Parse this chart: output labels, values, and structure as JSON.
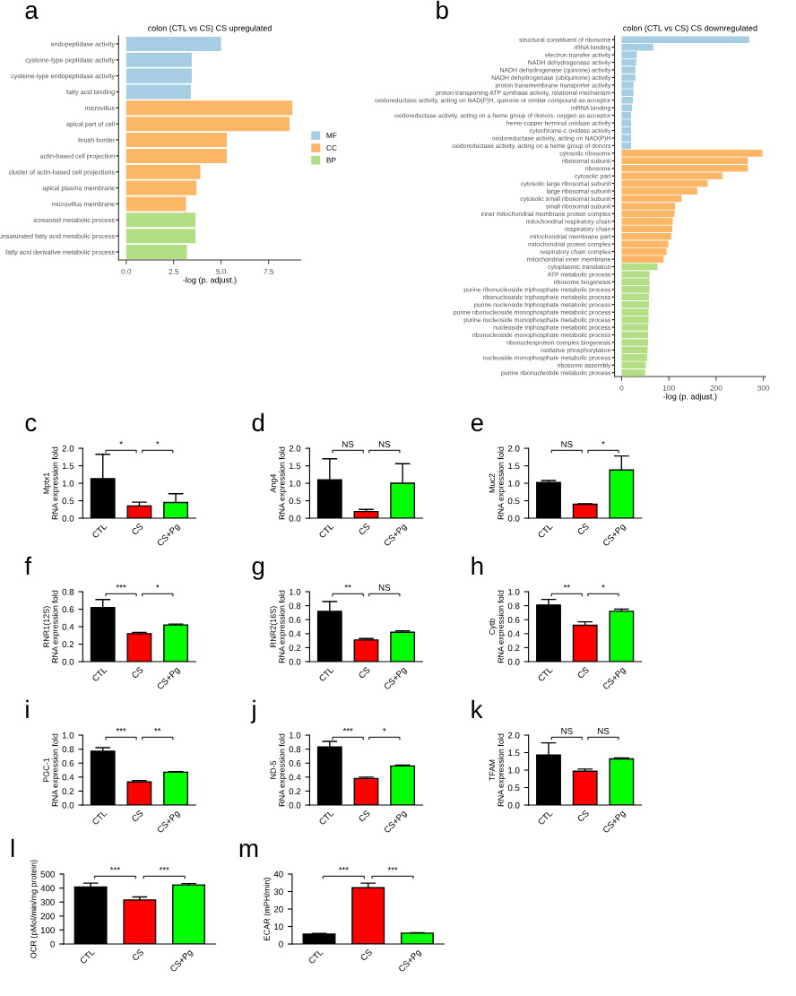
{
  "chart_data": [
    {
      "type": "bar",
      "orientation": "horizontal",
      "stacked": true,
      "title": "colon (CTL vs CS) CS upregulated",
      "xlabel": "-log (p. adjust.)",
      "annotations": [
        "a"
      ],
      "legend": "right",
      "categories": [
        "endopeptidase activity",
        "cysteine-type peptidase activity",
        "cysteine-type endopeptidase activity",
        "fatty acid binding",
        "microvillus",
        "apical part of cell",
        "brush border",
        "actin-based cell projection",
        "cluster of actin-based cell projections",
        "apical plasma membrane",
        "microvillus membrane",
        "icosanoid metabolic process",
        "unsaturated fatty acid metabolic process",
        "fatty acid derivative metabolic process"
      ],
      "series": [
        {
          "name": "MF",
          "color": "#a6cde2",
          "values": [
            5.0,
            3.45,
            3.45,
            3.4,
            null,
            null,
            null,
            null,
            null,
            null,
            null,
            null,
            null,
            null
          ]
        },
        {
          "name": "CC",
          "color": "#fbb666",
          "values": [
            null,
            null,
            null,
            null,
            8.75,
            8.6,
            5.3,
            5.3,
            3.9,
            3.7,
            3.15,
            null,
            null,
            null
          ]
        },
        {
          "name": "BP",
          "color": "#b3de85",
          "values": [
            null,
            null,
            null,
            null,
            null,
            null,
            null,
            null,
            null,
            null,
            null,
            3.65,
            3.65,
            3.2
          ]
        }
      ],
      "xlim": [
        -0.4,
        9.2
      ],
      "xticks": [
        {
          "value": 0,
          "label": "0.0"
        },
        {
          "value": 2.5,
          "label": "2.5"
        },
        {
          "value": 5,
          "label": "5.0"
        },
        {
          "value": 7.5,
          "label": "7.5"
        }
      ]
    },
    {
      "type": "bar",
      "orientation": "horizontal",
      "stacked": true,
      "title": "colon (CTL vs CS) CS downregulated",
      "xlabel": "-log (p. adjust.)",
      "annotations": [
        "b"
      ],
      "categories": [
        "structural constituent of ribosome",
        "rRNA binding",
        "electron transfer activity",
        "NADH dehydrogenase activity",
        "NADH dehydrogenase (quinone) activity",
        "NADH dehydrogenase (ubiquinone) activity",
        "proton transmembrane transporter activity",
        "proton-transporting ATP synthase activity, rotational mechanism",
        "oxidoreductase activity, acting on NAD(P)H, quinone or similar compound as acceptor",
        "mRNA binding",
        "oxidoreductase activity, acting on a heme group of donors, oxygen as acceptor",
        "heme-copper terminal oxidase activity",
        "cytochrome-c oxidase activity",
        "oxidoreductase activity, acting on NAD(P)H",
        "oxidoreductase activity, acting on a heme group of donors",
        "cytosolic ribosome",
        "ribosomal subunit",
        "ribosome",
        "cytosolic part",
        "cytosolic large ribosomal subunit",
        "large ribosomal subunit",
        "cytosolic small ribosomal subunit",
        "small ribosomal subunit",
        "inner mitochondrial membrane protein complex",
        "mitochondrial respiratory chain",
        "respiratory chain",
        "mitochondrial membrane part",
        "mitochondrial protein complex",
        "respiratory chain complex",
        "mitochondrial inner membrane",
        "cytoplasmic translation",
        "ATP metabolic process",
        "ribosome biogenesis",
        "purine ribonucleoside triphosphate metabolic process",
        "ribonucleoside triphosphate metabolic process",
        "purine nucleoside triphosphate metabolic process",
        "purine ribonucleoside monophosphate metabolic process",
        "purine nucleoside monophosphate metabolic process",
        "nucleoside triphosphate metabolic process",
        "ribonucleoside monophosphate metabolic process",
        "ribonucleoprotein complex biogenesis",
        "oxidative phosphorylation",
        "nucleoside monophosphate metabolic process",
        "ribosome assembly",
        "purine ribonucleotide metabolic process"
      ],
      "series": [
        {
          "color": "#a6cde2",
          "values": [
            270,
            67,
            32,
            31,
            29,
            29,
            25,
            25,
            24,
            22,
            20,
            20,
            20,
            20,
            20,
            null,
            null,
            null,
            null,
            null,
            null,
            null,
            null,
            null,
            null,
            null,
            null,
            null,
            null,
            null,
            null,
            null,
            null,
            null,
            null,
            null,
            null,
            null,
            null,
            null,
            null,
            null,
            null,
            null,
            null
          ]
        },
        {
          "color": "#fbb666",
          "values": [
            null,
            null,
            null,
            null,
            null,
            null,
            null,
            null,
            null,
            null,
            null,
            null,
            null,
            null,
            null,
            298,
            267,
            267,
            213,
            182,
            160,
            127,
            113,
            112,
            108,
            107,
            105,
            99,
            95,
            89,
            null,
            null,
            null,
            null,
            null,
            null,
            null,
            null,
            null,
            null,
            null,
            null,
            null,
            null,
            null
          ]
        },
        {
          "color": "#b3de85",
          "values": [
            null,
            null,
            null,
            null,
            null,
            null,
            null,
            null,
            null,
            null,
            null,
            null,
            null,
            null,
            null,
            null,
            null,
            null,
            null,
            null,
            null,
            null,
            null,
            null,
            null,
            null,
            null,
            null,
            null,
            null,
            76,
            59,
            59,
            59,
            58,
            58,
            57,
            57,
            56,
            56,
            56,
            55,
            54,
            51,
            50
          ]
        }
      ],
      "xlim": [
        -15,
        305
      ],
      "xticks": [
        0,
        100,
        200,
        300
      ]
    },
    {
      "type": "bar",
      "ylabel": "Mptx1\nRNA expression fold",
      "annotations": [
        "c",
        "*",
        "*"
      ],
      "categories": [
        "CTL",
        "CS",
        "CS+Pg"
      ],
      "colors": [
        "#000000",
        "#ff0000",
        "#00ff00"
      ],
      "values": [
        1.13,
        0.35,
        0.45
      ],
      "errors": [
        0.7,
        0.11,
        0.25
      ],
      "ylim": [
        0,
        2
      ],
      "yticks": [
        {
          "value": 0,
          "label": "0.0"
        },
        {
          "value": 0.5,
          "label": "0.5"
        },
        {
          "value": 1,
          "label": "1.0"
        },
        {
          "value": 1.5,
          "label": "1.5"
        },
        {
          "value": 2,
          "label": "2.0"
        }
      ]
    },
    {
      "type": "bar",
      "ylabel": "Ang4\nRNA expression fold",
      "annotations": [
        "d",
        "NS",
        "NS"
      ],
      "categories": [
        "CTL",
        "CS",
        "CS+Pg"
      ],
      "colors": [
        "#000000",
        "#ff0000",
        "#00ff00"
      ],
      "values": [
        1.1,
        0.19,
        1.0
      ],
      "errors": [
        0.6,
        0.06,
        0.56
      ],
      "ylim": [
        0,
        2
      ],
      "yticks": [
        {
          "value": 0,
          "label": "0.0"
        },
        {
          "value": 0.5,
          "label": "0.5"
        },
        {
          "value": 1,
          "label": "1.0"
        },
        {
          "value": 1.5,
          "label": "1.5"
        },
        {
          "value": 2,
          "label": "2.0"
        }
      ]
    },
    {
      "type": "bar",
      "ylabel": "Muc2\nRNA expression fold",
      "annotations": [
        "e",
        "NS",
        "*"
      ],
      "categories": [
        "CTL",
        "CS",
        "CS+Pg"
      ],
      "colors": [
        "#000000",
        "#ff0000",
        "#00ff00"
      ],
      "values": [
        1.02,
        0.4,
        1.38
      ],
      "errors": [
        0.06,
        0.01,
        0.4
      ],
      "ylim": [
        0,
        2
      ],
      "yticks": [
        {
          "value": 0,
          "label": "0.0"
        },
        {
          "value": 0.5,
          "label": "0.5"
        },
        {
          "value": 1,
          "label": "1.0"
        },
        {
          "value": 1.5,
          "label": "1.5"
        },
        {
          "value": 2,
          "label": "2.0"
        }
      ]
    },
    {
      "type": "bar",
      "ylabel": "RNR1(12S)\nRNA expression fold",
      "annotations": [
        "f",
        "***",
        "*"
      ],
      "categories": [
        "CTL",
        "CS",
        "CS+Pg"
      ],
      "colors": [
        "#000000",
        "#ff0000",
        "#00ff00"
      ],
      "values": [
        0.62,
        0.32,
        0.42
      ],
      "errors": [
        0.09,
        0.015,
        0.01
      ],
      "ylim": [
        0,
        0.8
      ],
      "yticks": [
        {
          "value": 0,
          "label": "0.0"
        },
        {
          "value": 0.2,
          "label": "0.2"
        },
        {
          "value": 0.4,
          "label": "0.4"
        },
        {
          "value": 0.6,
          "label": "0.6"
        },
        {
          "value": 0.8,
          "label": "0.8"
        }
      ]
    },
    {
      "type": "bar",
      "ylabel": "RNR2(16S)\nRNA expression fold",
      "annotations": [
        "g",
        "**",
        "NS"
      ],
      "categories": [
        "CTL",
        "CS",
        "CS+Pg"
      ],
      "colors": [
        "#000000",
        "#ff0000",
        "#00ff00"
      ],
      "values": [
        0.72,
        0.31,
        0.42
      ],
      "errors": [
        0.14,
        0.02,
        0.02
      ],
      "ylim": [
        0,
        1
      ],
      "yticks": [
        {
          "value": 0,
          "label": "0.0"
        },
        {
          "value": 0.2,
          "label": "0.2"
        },
        {
          "value": 0.4,
          "label": "0.4"
        },
        {
          "value": 0.6,
          "label": "0.6"
        },
        {
          "value": 0.8,
          "label": "0.8"
        },
        {
          "value": 1,
          "label": "1.0"
        }
      ]
    },
    {
      "type": "bar",
      "ylabel": "Cytb\nRNA expression fold",
      "annotations": [
        "h",
        "**",
        "*"
      ],
      "categories": [
        "CTL",
        "CS",
        "CS+Pg"
      ],
      "colors": [
        "#000000",
        "#ff0000",
        "#00ff00"
      ],
      "values": [
        0.81,
        0.52,
        0.72
      ],
      "errors": [
        0.08,
        0.05,
        0.03
      ],
      "ylim": [
        0,
        1
      ],
      "yticks": [
        {
          "value": 0,
          "label": "0.0"
        },
        {
          "value": 0.2,
          "label": "0.2"
        },
        {
          "value": 0.4,
          "label": "0.4"
        },
        {
          "value": 0.6,
          "label": "0.6"
        },
        {
          "value": 0.8,
          "label": "0.8"
        },
        {
          "value": 1,
          "label": "1.0"
        }
      ]
    },
    {
      "type": "bar",
      "ylabel": "PGC-1\nRNA expression fold",
      "annotations": [
        "i",
        "***",
        "**"
      ],
      "categories": [
        "CTL",
        "CS",
        "CS+Pg"
      ],
      "colors": [
        "#000000",
        "#ff0000",
        "#00ff00"
      ],
      "values": [
        0.77,
        0.33,
        0.47
      ],
      "errors": [
        0.05,
        0.02,
        0.01
      ],
      "ylim": [
        0,
        1
      ],
      "yticks": [
        {
          "value": 0,
          "label": "0.0"
        },
        {
          "value": 0.2,
          "label": "0.2"
        },
        {
          "value": 0.4,
          "label": "0.4"
        },
        {
          "value": 0.6,
          "label": "0.6"
        },
        {
          "value": 0.8,
          "label": "0.8"
        },
        {
          "value": 1,
          "label": "1.0"
        }
      ]
    },
    {
      "type": "bar",
      "ylabel": "ND-5\nRNA expression fold",
      "annotations": [
        "j",
        "***",
        "*"
      ],
      "categories": [
        "CTL",
        "CS",
        "CS+Pg"
      ],
      "colors": [
        "#000000",
        "#ff0000",
        "#00ff00"
      ],
      "values": [
        0.83,
        0.38,
        0.56
      ],
      "errors": [
        0.08,
        0.02,
        0.01
      ],
      "ylim": [
        0,
        1
      ],
      "yticks": [
        {
          "value": 0,
          "label": "0.0"
        },
        {
          "value": 0.2,
          "label": "0.2"
        },
        {
          "value": 0.4,
          "label": "0.4"
        },
        {
          "value": 0.6,
          "label": "0.6"
        },
        {
          "value": 0.8,
          "label": "0.8"
        },
        {
          "value": 1,
          "label": "1.0"
        }
      ]
    },
    {
      "type": "bar",
      "ylabel": "TFAM\nRNA expression fold",
      "annotations": [
        "k",
        "NS",
        "NS"
      ],
      "categories": [
        "CTL",
        "CS",
        "CS+Pg"
      ],
      "colors": [
        "#000000",
        "#ff0000",
        "#00ff00"
      ],
      "values": [
        1.43,
        0.97,
        1.32
      ],
      "errors": [
        0.35,
        0.06,
        0.03
      ],
      "ylim": [
        0,
        2
      ],
      "yticks": [
        {
          "value": 0,
          "label": "0.0"
        },
        {
          "value": 0.5,
          "label": "0.5"
        },
        {
          "value": 1,
          "label": "1.0"
        },
        {
          "value": 1.5,
          "label": "1.5"
        },
        {
          "value": 2,
          "label": "2.0"
        }
      ]
    },
    {
      "type": "bar",
      "ylabel": "OCR (pMol/min/mg protein)",
      "annotations": [
        "l",
        "***",
        "***"
      ],
      "categories": [
        "CTL",
        "CS",
        "CS+Pg"
      ],
      "colors": [
        "#000000",
        "#ff0000",
        "#00ff00"
      ],
      "values": [
        408,
        315,
        422
      ],
      "errors": [
        27,
        22,
        10
      ],
      "ylim": [
        0,
        500
      ],
      "yticks": [
        0,
        100,
        200,
        300,
        400,
        500
      ]
    },
    {
      "type": "bar",
      "ylabel": "ECAR (mPH/min)",
      "annotations": [
        "m",
        "***",
        "***"
      ],
      "categories": [
        "CTL",
        "CS",
        "CS+Pg"
      ],
      "colors": [
        "#000000",
        "#ff0000",
        "#00ff00"
      ],
      "values": [
        5.7,
        32.2,
        6.2
      ],
      "errors": [
        0.3,
        2.6,
        0.3
      ],
      "ylim": [
        0,
        40
      ],
      "yticks": [
        0,
        10,
        20,
        30,
        40
      ]
    }
  ]
}
